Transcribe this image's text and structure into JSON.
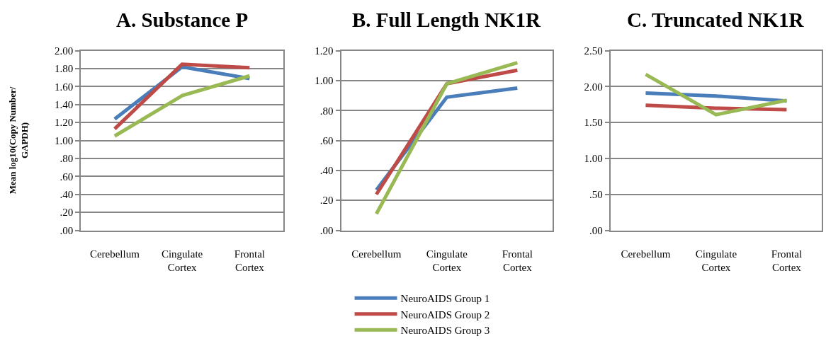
{
  "chart_data": [
    {
      "type": "line",
      "title": "A. Substance P",
      "ylabel": "Mean log10(Copy Number/ GAPDH)",
      "categories": [
        "Cerebellum",
        "Cingulate Cortex",
        "Frontal Cortex"
      ],
      "ylim": [
        0,
        2
      ],
      "yticks": [
        {
          "value": 0,
          "label": ".00"
        },
        {
          "value": 0.2,
          "label": ".20"
        },
        {
          "value": 0.4,
          "label": ".40"
        },
        {
          "value": 0.6,
          "label": ".60"
        },
        {
          "value": 0.8,
          "label": ".80"
        },
        {
          "value": 1,
          "label": "1.00"
        },
        {
          "value": 1.2,
          "label": "1.20"
        },
        {
          "value": 1.4,
          "label": "1.40"
        },
        {
          "value": 1.6,
          "label": "1.60"
        },
        {
          "value": 1.8,
          "label": "1.80"
        },
        {
          "value": 2,
          "label": "2.00"
        }
      ],
      "grid": "y",
      "legend": false,
      "marker": "none",
      "line_style": "solid",
      "series": [
        {
          "color": "#4a7ebb",
          "values": [
            1.24,
            1.82,
            1.69
          ]
        },
        {
          "color": "#be4b48",
          "values": [
            1.13,
            1.85,
            1.81
          ]
        },
        {
          "color": "#98b954",
          "values": [
            1.05,
            1.5,
            1.72
          ]
        }
      ]
    },
    {
      "type": "line",
      "title": "B. Full Length NK1R",
      "categories": [
        "Cerebellum",
        "Cingulate Cortex",
        "Frontal Cortex"
      ],
      "ylim": [
        0,
        1.2
      ],
      "yticks": [
        {
          "value": 0,
          "label": ".00"
        },
        {
          "value": 0.2,
          "label": ".20"
        },
        {
          "value": 0.4,
          "label": ".40"
        },
        {
          "value": 0.6,
          "label": ".60"
        },
        {
          "value": 0.8,
          "label": ".80"
        },
        {
          "value": 1,
          "label": "1.00"
        },
        {
          "value": 1.2,
          "label": "1.20"
        }
      ],
      "grid": "y",
      "legend": "bottom",
      "marker": "none",
      "line_style": "solid",
      "series": [
        {
          "name": "NeuroAIDS Group 1",
          "color": "#4a7ebb",
          "values": [
            0.27,
            0.89,
            0.95
          ]
        },
        {
          "name": "NeuroAIDS Group 2",
          "color": "#be4b48",
          "values": [
            0.24,
            0.98,
            1.07
          ]
        },
        {
          "name": "NeuroAIDS Group 3",
          "color": "#98b954",
          "values": [
            0.11,
            0.98,
            1.12
          ]
        }
      ]
    },
    {
      "type": "line",
      "title": "C. Truncated NK1R",
      "categories": [
        "Cerebellum",
        "Cingulate Cortex",
        "Frontal Cortex"
      ],
      "ylim": [
        0,
        2.5
      ],
      "yticks": [
        {
          "value": 0,
          "label": ".00"
        },
        {
          "value": 0.5,
          "label": ".50"
        },
        {
          "value": 1,
          "label": "1.00"
        },
        {
          "value": 1.5,
          "label": "1.50"
        },
        {
          "value": 2,
          "label": "2.00"
        },
        {
          "value": 2.5,
          "label": "2.50"
        }
      ],
      "grid": "y",
      "legend": false,
      "marker": "none",
      "line_style": "solid",
      "series": [
        {
          "color": "#4a7ebb",
          "values": [
            1.91,
            1.87,
            1.8
          ]
        },
        {
          "color": "#be4b48",
          "values": [
            1.74,
            1.7,
            1.68
          ]
        },
        {
          "color": "#98b954",
          "values": [
            2.17,
            1.61,
            1.81
          ]
        }
      ]
    }
  ]
}
